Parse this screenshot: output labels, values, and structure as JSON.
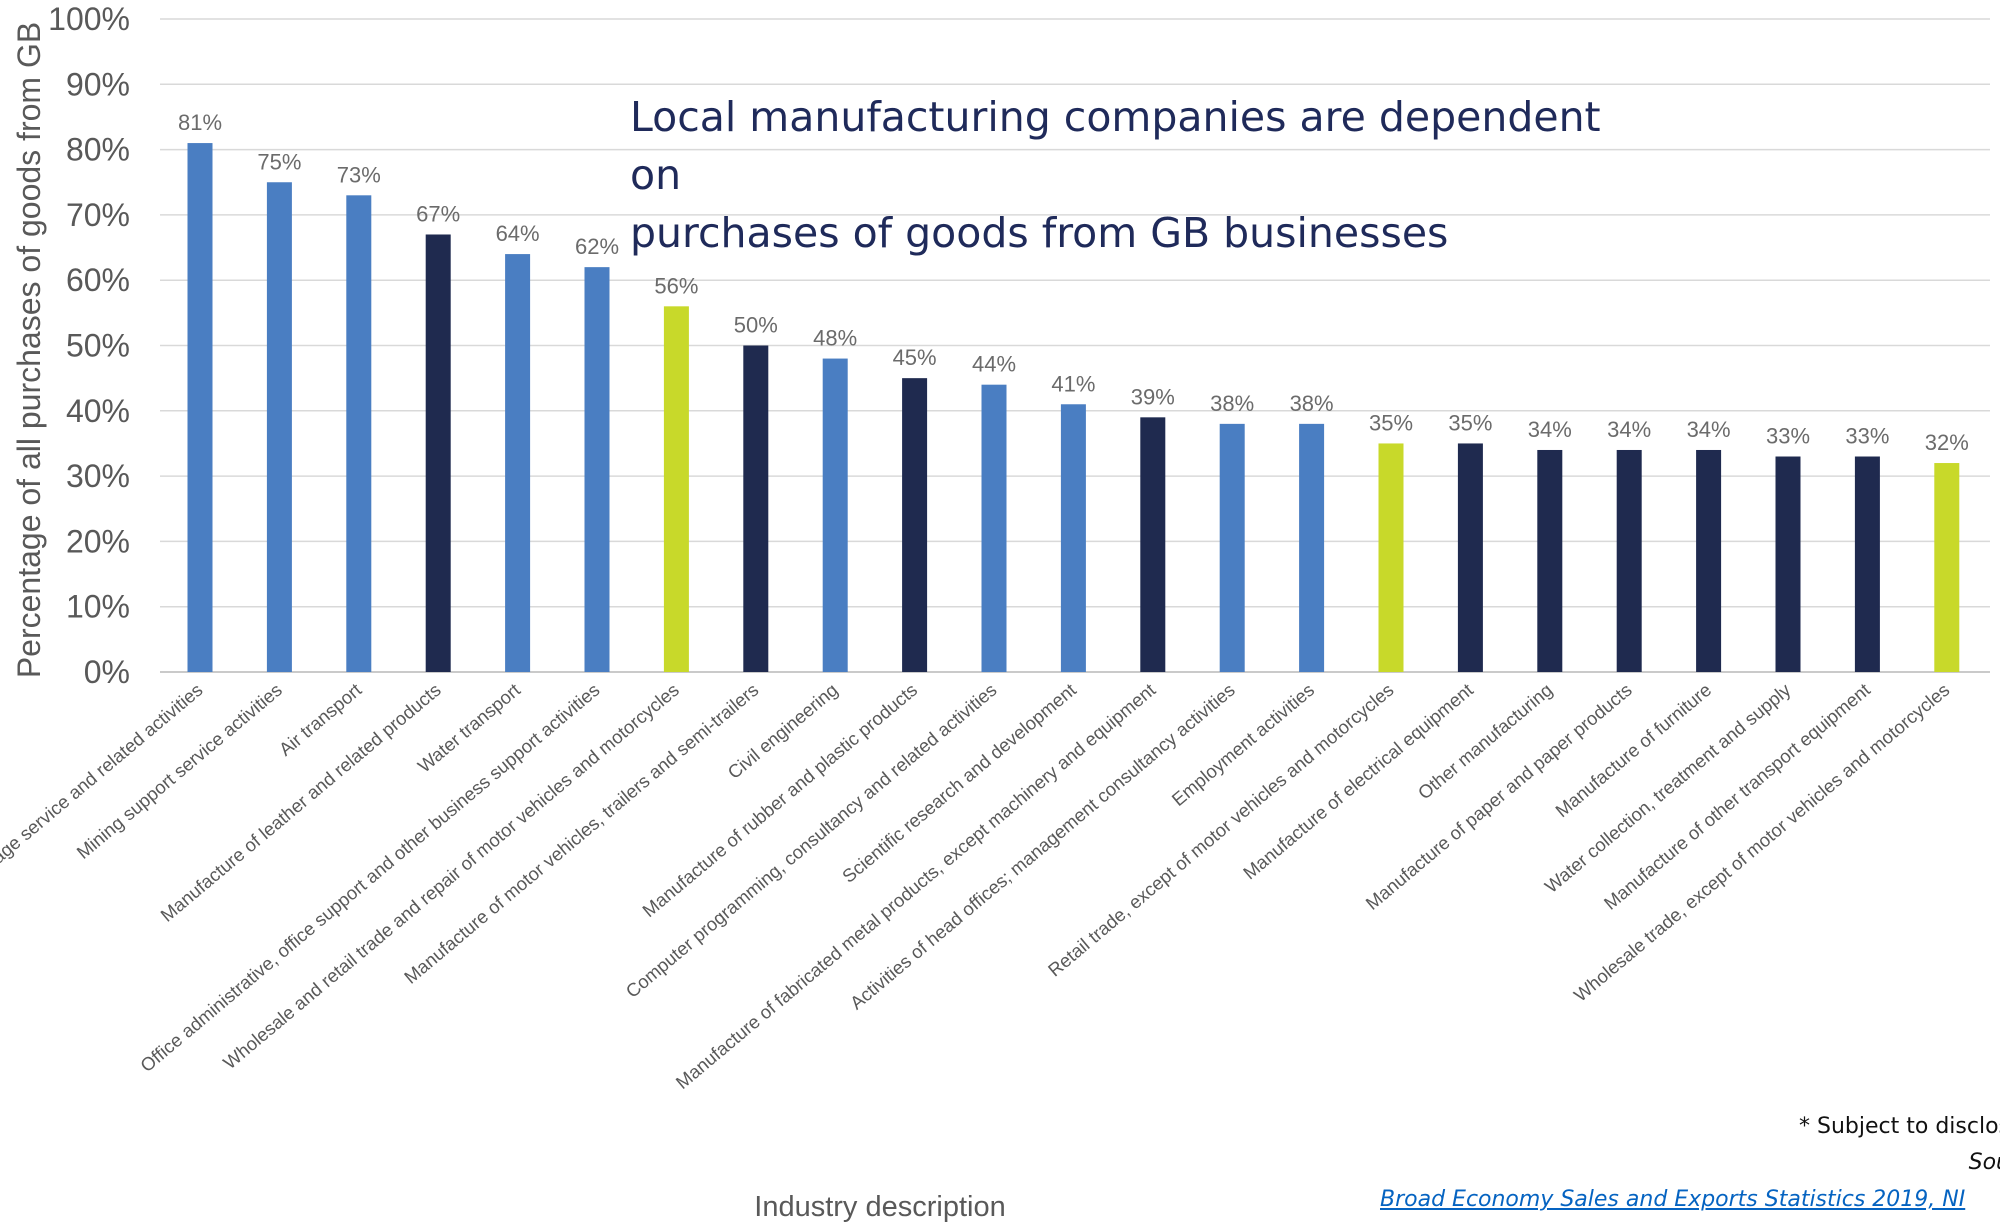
{
  "headline": {
    "line1": "Local manufacturing companies are dependent on",
    "line2": "purchases of goods from GB businesses"
  },
  "footnote": "* Subject to disclos",
  "source_prefix": "Sou",
  "source_link": "Broad Economy Sales and Exports Statistics 2019, NI",
  "colors": {
    "blue": "#4a7ec2",
    "navy": "#1f2a4f",
    "lime": "#c8d92a",
    "grid": "#d9d9d9",
    "axis_text": "#595959",
    "label_text": "#6b6b6b"
  },
  "chart_data": {
    "type": "bar",
    "xlabel": "Industry description",
    "ylabel": "Percentage of all purchases of goods from GB",
    "ylim": [
      0,
      100
    ],
    "yticks": [
      "0%",
      "10%",
      "20%",
      "30%",
      "40%",
      "50%",
      "60%",
      "70%",
      "80%",
      "90%",
      "100%"
    ],
    "grid": true,
    "categories": [
      "Food and beverage service and related activities",
      "Mining support service activities",
      "Air transport",
      "Manufacture of leather and related products",
      "Water transport",
      "Office administrative, office support and other business support activities",
      "Wholesale and retail trade and repair of motor vehicles and motorcycles",
      "Manufacture of motor vehicles, trailers and semi-trailers",
      "Civil engineering",
      "Manufacture of rubber and plastic products",
      "Computer programming, consultancy and related activities",
      "Scientific research and development",
      "Manufacture of fabricated metal products, except machinery and equipment",
      "Activities of head offices; management consultancy activities",
      "Employment activities",
      "Retail trade, except of motor vehicles and motorcycles",
      "Manufacture of electrical equipment",
      "Other manufacturing",
      "Manufacture of paper and paper products",
      "Manufacture of furniture",
      "Water collection, treatment and supply",
      "Manufacture of other transport equipment",
      "Wholesale trade, except of motor vehicles and motorcycles"
    ],
    "values": [
      81,
      75,
      73,
      67,
      64,
      62,
      56,
      50,
      48,
      45,
      44,
      41,
      39,
      38,
      38,
      35,
      35,
      34,
      34,
      34,
      33,
      33,
      32
    ],
    "value_labels": [
      "81%",
      "75%",
      "73%",
      "67%",
      "64%",
      "62%",
      "56%",
      "50%",
      "48%",
      "45%",
      "44%",
      "41%",
      "39%",
      "38%",
      "38%",
      "35%",
      "35%",
      "34%",
      "34%",
      "34%",
      "33%",
      "33%",
      "32%"
    ],
    "bar_colors": [
      "blue",
      "blue",
      "blue",
      "navy",
      "blue",
      "blue",
      "lime",
      "navy",
      "blue",
      "navy",
      "blue",
      "blue",
      "navy",
      "blue",
      "blue",
      "lime",
      "navy",
      "navy",
      "navy",
      "navy",
      "navy",
      "navy",
      "lime"
    ]
  }
}
